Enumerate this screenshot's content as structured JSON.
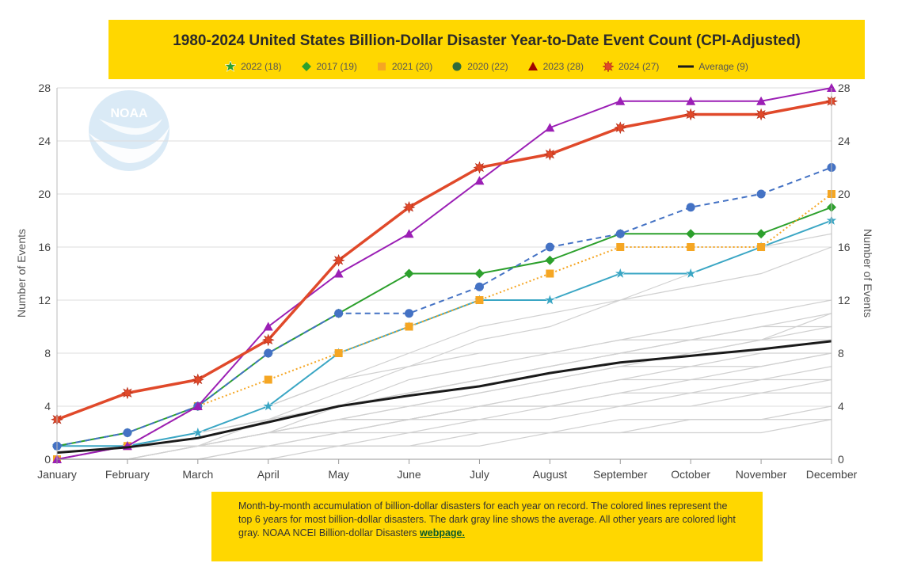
{
  "chart_data": {
    "type": "line",
    "title": "1980-2024 United States Billion-Dollar Disaster Year-to-Date Event Count (CPI-Adjusted)",
    "xlabel": "",
    "ylabel": "Number of Events",
    "ylabel_right": "Number of Events",
    "categories": [
      "January",
      "February",
      "March",
      "April",
      "May",
      "June",
      "July",
      "August",
      "September",
      "October",
      "November",
      "December"
    ],
    "y_ticks": [
      "0",
      "4",
      "8",
      "12",
      "16",
      "20",
      "24",
      "28"
    ],
    "ylim": [
      0,
      28
    ],
    "grid": true,
    "legend_position": "top",
    "series": [
      {
        "name": "2022 (18)",
        "color": "#3aa6c4",
        "marker": "star",
        "dash": "solid",
        "values": [
          1,
          1,
          2,
          4,
          8,
          10,
          12,
          12,
          14,
          14,
          16,
          18
        ]
      },
      {
        "name": "2017 (19)",
        "color": "#2ca02c",
        "marker": "diamond",
        "dash": "solid",
        "values": [
          1,
          2,
          4,
          8,
          11,
          14,
          14,
          15,
          17,
          17,
          17,
          19
        ]
      },
      {
        "name": "2021 (20)",
        "color": "#f5a623",
        "marker": "square",
        "dash": "dotted",
        "values": [
          0,
          1,
          4,
          6,
          8,
          10,
          12,
          14,
          16,
          16,
          16,
          20
        ]
      },
      {
        "name": "2020 (22)",
        "color": "#4472c4",
        "marker": "circle",
        "dash": "dashed",
        "values": [
          1,
          2,
          4,
          8,
          11,
          11,
          13,
          16,
          17,
          19,
          20,
          22
        ]
      },
      {
        "name": "2023 (28)",
        "color": "#9b1fb5",
        "marker": "triangle",
        "dash": "solid",
        "values": [
          0,
          1,
          4,
          10,
          14,
          17,
          21,
          25,
          27,
          27,
          27,
          28
        ]
      },
      {
        "name": "2024 (27)",
        "color": "#e0492a",
        "marker": "burst",
        "dash": "solid",
        "values": [
          3,
          5,
          6,
          9,
          15,
          19,
          22,
          23,
          25,
          26,
          26,
          27
        ]
      },
      {
        "name": "Average (9)",
        "color": "#1a1a1a",
        "marker": "none",
        "dash": "solid",
        "values": [
          0.5,
          0.9,
          1.6,
          2.8,
          4.0,
          4.8,
          5.5,
          6.5,
          7.3,
          7.8,
          8.3,
          8.9
        ]
      }
    ],
    "background_series": [
      [
        0,
        0,
        1,
        1,
        2,
        2,
        3,
        3,
        4,
        4,
        5,
        5
      ],
      [
        0,
        1,
        1,
        2,
        3,
        3,
        4,
        4,
        5,
        5,
        6,
        6
      ],
      [
        0,
        0,
        0,
        1,
        1,
        2,
        2,
        2,
        3,
        3,
        3,
        4
      ],
      [
        0,
        1,
        2,
        3,
        4,
        5,
        6,
        7,
        8,
        9,
        10,
        11
      ],
      [
        0,
        1,
        1,
        3,
        4,
        6,
        7,
        8,
        9,
        10,
        11,
        12
      ],
      [
        0,
        1,
        2,
        4,
        6,
        8,
        10,
        11,
        12,
        13,
        14,
        16
      ],
      [
        0,
        1,
        2,
        3,
        5,
        7,
        9,
        10,
        12,
        14,
        16,
        17
      ],
      [
        0,
        0,
        1,
        2,
        3,
        4,
        5,
        6,
        7,
        8,
        9,
        10
      ],
      [
        0,
        1,
        1,
        2,
        2,
        3,
        3,
        4,
        4,
        5,
        5,
        6
      ],
      [
        0,
        0,
        0,
        1,
        1,
        1,
        2,
        2,
        2,
        3,
        3,
        3
      ],
      [
        0,
        1,
        2,
        4,
        6,
        7,
        8,
        8,
        9,
        9,
        10,
        10
      ],
      [
        0,
        0,
        1,
        1,
        2,
        3,
        4,
        5,
        6,
        6,
        7,
        8
      ],
      [
        0,
        1,
        1,
        2,
        4,
        5,
        6,
        7,
        8,
        8,
        9,
        9
      ],
      [
        0,
        0,
        1,
        2,
        2,
        3,
        4,
        4,
        5,
        6,
        6,
        7
      ],
      [
        0,
        1,
        2,
        3,
        4,
        5,
        6,
        7,
        8,
        9,
        9,
        11
      ],
      [
        0,
        0,
        1,
        2,
        3,
        3,
        4,
        5,
        6,
        7,
        7,
        8
      ],
      [
        0,
        1,
        1,
        2,
        3,
        4,
        5,
        6,
        7,
        7,
        8,
        8
      ],
      [
        0,
        0,
        0,
        0,
        1,
        1,
        1,
        2,
        2,
        2,
        2,
        3
      ]
    ]
  },
  "note": {
    "text": "Month-by-month accumulation of billion-dollar disasters for each year on record. The colored lines represent the top 6 years for most billion-dollar disasters. The dark gray line shows the average. All other years are colored light gray. NOAA NCEI Billion-dollar Disasters ",
    "link_text": "webpage."
  },
  "logo": {
    "text": "NOAA"
  }
}
